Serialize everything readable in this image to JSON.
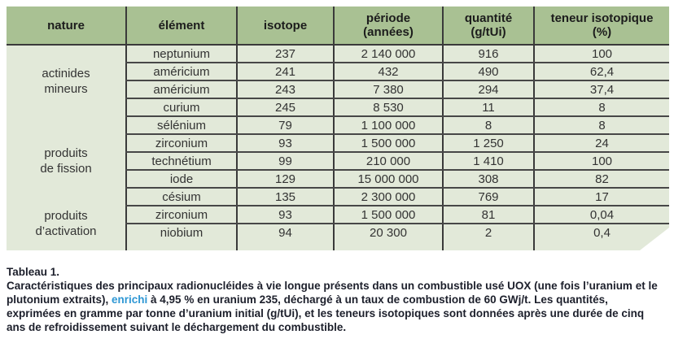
{
  "colors": {
    "header_bg": "#a9c193",
    "body_bg": "#e2e9d9",
    "grid_line": "#3a3a3a",
    "cell_text": "#333333",
    "caption_text": "#1c1f2b",
    "link_blue": "#2e97d4"
  },
  "table": {
    "headers": [
      "nature",
      "élément",
      "isotope",
      "période\n(années)",
      "quantité\n(g/tUi)",
      "teneur isotopique\n(%)"
    ],
    "groups": [
      {
        "nature": "actinides\nmineurs",
        "rows": [
          {
            "element": "neptunium",
            "isotope": "237",
            "periode": "2 140 000",
            "quantite": "916",
            "teneur": "100"
          },
          {
            "element": "américium",
            "isotope": "241",
            "periode": "432",
            "quantite": "490",
            "teneur": "62,4"
          },
          {
            "element": "américium",
            "isotope": "243",
            "periode": "7 380",
            "quantite": "294",
            "teneur": "37,4"
          },
          {
            "element": "curium",
            "isotope": "245",
            "periode": "8 530",
            "quantite": "11",
            "teneur": "8"
          }
        ]
      },
      {
        "nature": "produits\nde fission",
        "rows": [
          {
            "element": "sélénium",
            "isotope": "79",
            "periode": "1 100 000",
            "quantite": "8",
            "teneur": "8"
          },
          {
            "element": "zirconium",
            "isotope": "93",
            "periode": "1 500 000",
            "quantite": "1 250",
            "teneur": "24"
          },
          {
            "element": "technétium",
            "isotope": "99",
            "periode": "210 000",
            "quantite": "1 410",
            "teneur": "100"
          },
          {
            "element": "iode",
            "isotope": "129",
            "periode": "15 000 000",
            "quantite": "308",
            "teneur": "82"
          },
          {
            "element": "césium",
            "isotope": "135",
            "periode": "2 300 000",
            "quantite": "769",
            "teneur": "17"
          }
        ]
      },
      {
        "nature": "produits\nd’activation",
        "rows": [
          {
            "element": "zirconium",
            "isotope": "93",
            "periode": "1 500 000",
            "quantite": "81",
            "teneur": "0,04"
          },
          {
            "element": "niobium",
            "isotope": "94",
            "periode": "20 300",
            "quantite": "2",
            "teneur": "0,4"
          }
        ]
      }
    ]
  },
  "caption": {
    "title": "Tableau 1.",
    "part1": "Caractéristiques des principaux radionucléides à vie longue présents dans un combustible usé UOX (une fois l’uranium et le plutonium extraits), ",
    "link": "enrichi",
    "part2": " à 4,95 % en uranium 235, déchargé à un taux de combustion de 60 GWj/t. Les quantités, exprimées en gramme par tonne d’uranium initial (g/tUi), et les teneurs isotopiques sont données après une durée de cinq ans de refroidissement suivant le déchargement du combustible."
  }
}
